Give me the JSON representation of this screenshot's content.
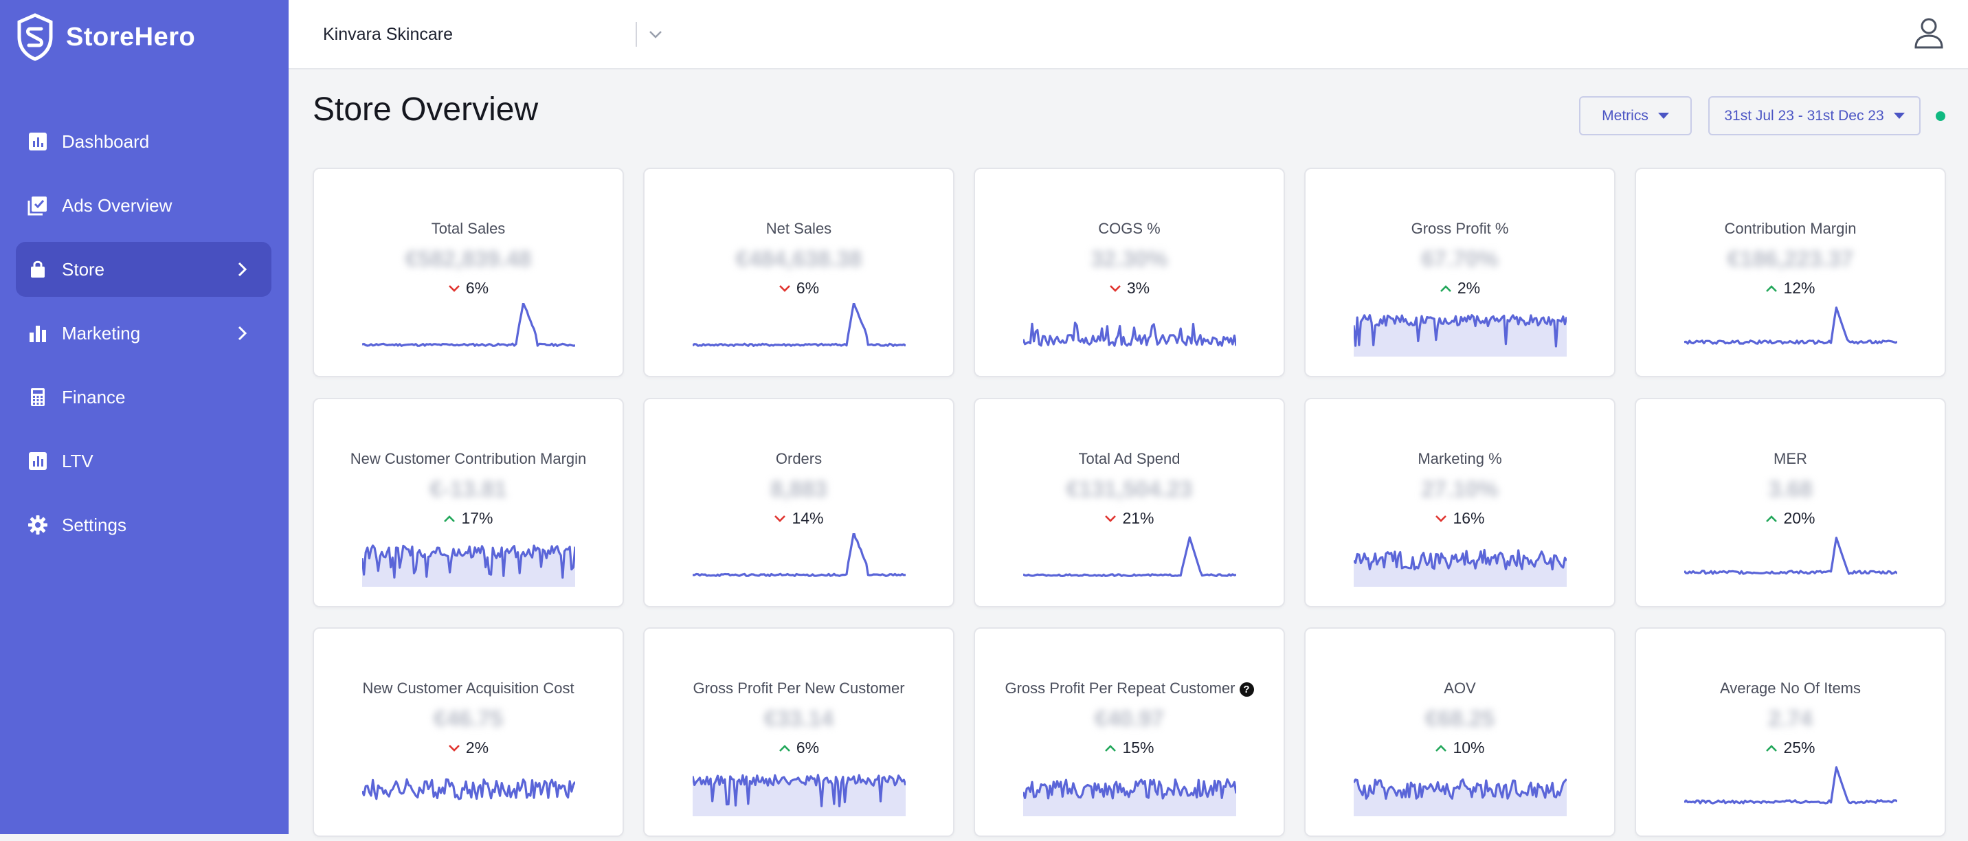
{
  "brand": {
    "name": "StoreHero"
  },
  "sidebar": {
    "items": [
      {
        "label": "Dashboard",
        "icon": "bar-chart-icon",
        "active": false,
        "chevron": false
      },
      {
        "label": "Ads Overview",
        "icon": "checklist-icon",
        "active": false,
        "chevron": false
      },
      {
        "label": "Store",
        "icon": "bag-icon",
        "active": true,
        "chevron": true
      },
      {
        "label": "Marketing",
        "icon": "column-chart-icon",
        "active": false,
        "chevron": true
      },
      {
        "label": "Finance",
        "icon": "calculator-icon",
        "active": false,
        "chevron": false
      },
      {
        "label": "LTV",
        "icon": "chart-box-icon",
        "active": false,
        "chevron": false
      },
      {
        "label": "Settings",
        "icon": "gear-icon",
        "active": false,
        "chevron": false
      }
    ]
  },
  "topbar": {
    "store": "Kinvara Skincare",
    "user_icon": "user-icon"
  },
  "header": {
    "title": "Store Overview",
    "metrics_label": "Metrics",
    "date_range": "31st Jul 23 - 31st Dec 23"
  },
  "colors": {
    "accent": "#5a65d8",
    "up": "#22a75a",
    "down": "#e0342f",
    "spark": "#5a65d8",
    "live": "#10b981"
  },
  "cards": [
    {
      "title": "Total Sales",
      "value": "€582,839.48",
      "change": "6%",
      "direction": "down",
      "shape": "spike",
      "fill": false
    },
    {
      "title": "Net Sales",
      "value": "€484,638.38",
      "change": "6%",
      "direction": "down",
      "shape": "spike",
      "fill": false
    },
    {
      "title": "COGS %",
      "value": "32.30%",
      "change": "3%",
      "direction": "down",
      "shape": "noisy-low",
      "fill": false
    },
    {
      "title": "Gross Profit %",
      "value": "67.70%",
      "change": "2%",
      "direction": "up",
      "shape": "band-dips",
      "fill": true
    },
    {
      "title": "Contribution Margin",
      "value": "€186,223.37",
      "change": "12%",
      "direction": "up",
      "shape": "spike-small",
      "fill": false
    },
    {
      "title": "New Customer Contribution Margin",
      "value": "€-13.81",
      "change": "17%",
      "direction": "up",
      "shape": "band-jagged",
      "fill": true
    },
    {
      "title": "Orders",
      "value": "8,883",
      "change": "14%",
      "direction": "down",
      "shape": "spike",
      "fill": false
    },
    {
      "title": "Total Ad Spend",
      "value": "€131,504.23",
      "change": "21%",
      "direction": "down",
      "shape": "spike-late",
      "fill": false
    },
    {
      "title": "Marketing %",
      "value": "27.10%",
      "change": "16%",
      "direction": "down",
      "shape": "noisy-mid",
      "fill": true
    },
    {
      "title": "MER",
      "value": "3.68",
      "change": "20%",
      "direction": "up",
      "shape": "spike-small",
      "fill": false
    },
    {
      "title": "New Customer Acquisition Cost",
      "value": "€46.75",
      "change": "2%",
      "direction": "down",
      "shape": "noisy-mid",
      "fill": false
    },
    {
      "title": "Gross Profit Per New Customer",
      "value": "€33.14",
      "change": "6%",
      "direction": "up",
      "shape": "band-dips",
      "fill": true
    },
    {
      "title": "Gross Profit Per Repeat Customer",
      "value": "€40.97",
      "change": "15%",
      "direction": "up",
      "shape": "noisy-mid",
      "fill": true,
      "help": true
    },
    {
      "title": "AOV",
      "value": "€68.25",
      "change": "10%",
      "direction": "up",
      "shape": "noisy-mid",
      "fill": true
    },
    {
      "title": "Average No Of Items",
      "value": "2.74",
      "change": "25%",
      "direction": "up",
      "shape": "spike-small",
      "fill": false
    }
  ]
}
